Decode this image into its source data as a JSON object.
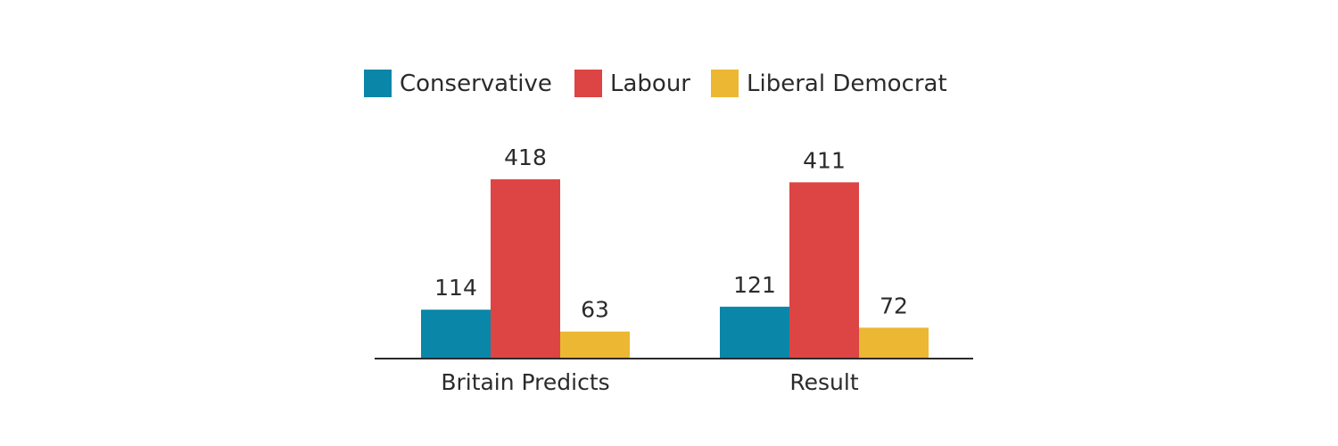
{
  "chart_data": {
    "type": "bar",
    "categories": [
      "Britain Predicts",
      "Result"
    ],
    "series": [
      {
        "name": "Conservative",
        "color": "#0a86a8",
        "values": [
          114,
          121
        ]
      },
      {
        "name": "Labour",
        "color": "#dd4444",
        "values": [
          418,
          411
        ]
      },
      {
        "name": "Liberal Democrat",
        "color": "#ecb732",
        "values": [
          63,
          72
        ]
      }
    ],
    "title": "",
    "xlabel": "",
    "ylabel": "",
    "ylim": [
      0,
      418
    ],
    "grid": false,
    "legend_position": "top-center",
    "data_labels": true
  }
}
